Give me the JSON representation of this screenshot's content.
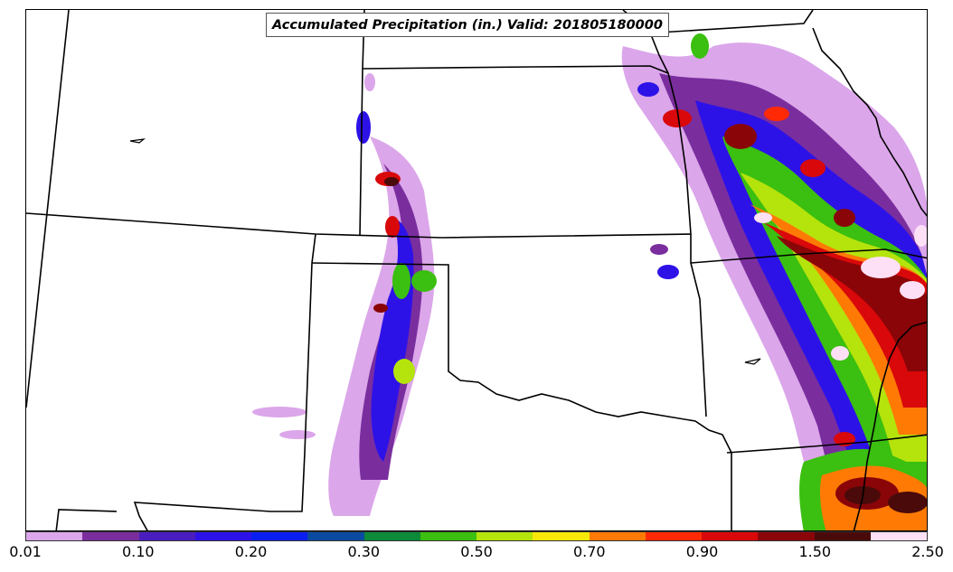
{
  "title": "Accumulated Precipitation (in.) Valid: 201805180000",
  "legend": {
    "tick_labels": [
      "0.01",
      "0.10",
      "0.20",
      "0.30",
      "0.50",
      "0.70",
      "0.90",
      "1.50",
      "2.50"
    ],
    "colors": [
      "#dba6ea",
      "#7a2e9e",
      "#4a1dbf",
      "#2d12e8",
      "#0a1ef0",
      "#0a4aa0",
      "#0d8a3a",
      "#3bbf10",
      "#b5e30c",
      "#f7e80a",
      "#ff7a05",
      "#ff2a05",
      "#d9080a",
      "#8a0508",
      "#4a0a0a",
      "#fde0f5"
    ]
  }
}
